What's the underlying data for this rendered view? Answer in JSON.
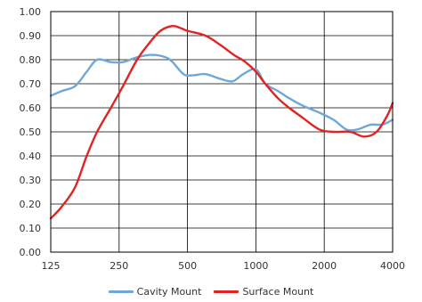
{
  "chart_data": {
    "type": "line",
    "title": "",
    "xlabel": "",
    "ylabel": "",
    "xscale": "log",
    "xlim": [
      125,
      4000
    ],
    "ylim": [
      0,
      1.0
    ],
    "x_ticks": [
      "125",
      "250",
      "500",
      "1000",
      "2000",
      "4000"
    ],
    "y_ticks": [
      "0.00",
      "0.10",
      "0.20",
      "0.30",
      "0.40",
      "0.50",
      "0.60",
      "0.70",
      "0.80",
      "0.90",
      "1.00"
    ],
    "grid": true,
    "legend_position": "bottom-center",
    "series": [
      {
        "name": "Cavity Mount",
        "color": "#6fa8d6",
        "points": [
          [
            125,
            0.65
          ],
          [
            140,
            0.67
          ],
          [
            160,
            0.69
          ],
          [
            180,
            0.75
          ],
          [
            200,
            0.8
          ],
          [
            230,
            0.79
          ],
          [
            260,
            0.79
          ],
          [
            300,
            0.81
          ],
          [
            350,
            0.82
          ],
          [
            400,
            0.81
          ],
          [
            430,
            0.79
          ],
          [
            480,
            0.74
          ],
          [
            530,
            0.735
          ],
          [
            600,
            0.74
          ],
          [
            700,
            0.72
          ],
          [
            790,
            0.71
          ],
          [
            880,
            0.74
          ],
          [
            1000,
            0.76
          ],
          [
            1100,
            0.7
          ],
          [
            1250,
            0.67
          ],
          [
            1400,
            0.64
          ],
          [
            1600,
            0.61
          ],
          [
            1900,
            0.58
          ],
          [
            2200,
            0.55
          ],
          [
            2500,
            0.51
          ],
          [
            2800,
            0.51
          ],
          [
            3200,
            0.53
          ],
          [
            3600,
            0.53
          ],
          [
            4000,
            0.55
          ]
        ]
      },
      {
        "name": "Surface Mount",
        "color": "#e02424",
        "points": [
          [
            125,
            0.14
          ],
          [
            140,
            0.19
          ],
          [
            160,
            0.27
          ],
          [
            180,
            0.4
          ],
          [
            200,
            0.5
          ],
          [
            230,
            0.6
          ],
          [
            260,
            0.69
          ],
          [
            300,
            0.8
          ],
          [
            340,
            0.87
          ],
          [
            380,
            0.92
          ],
          [
            430,
            0.94
          ],
          [
            470,
            0.93
          ],
          [
            500,
            0.92
          ],
          [
            600,
            0.9
          ],
          [
            700,
            0.86
          ],
          [
            800,
            0.82
          ],
          [
            900,
            0.79
          ],
          [
            1000,
            0.75
          ],
          [
            1100,
            0.7
          ],
          [
            1250,
            0.64
          ],
          [
            1400,
            0.6
          ],
          [
            1600,
            0.56
          ],
          [
            1900,
            0.51
          ],
          [
            2200,
            0.5
          ],
          [
            2600,
            0.5
          ],
          [
            3000,
            0.48
          ],
          [
            3400,
            0.5
          ],
          [
            3800,
            0.57
          ],
          [
            4000,
            0.62
          ]
        ]
      }
    ]
  }
}
